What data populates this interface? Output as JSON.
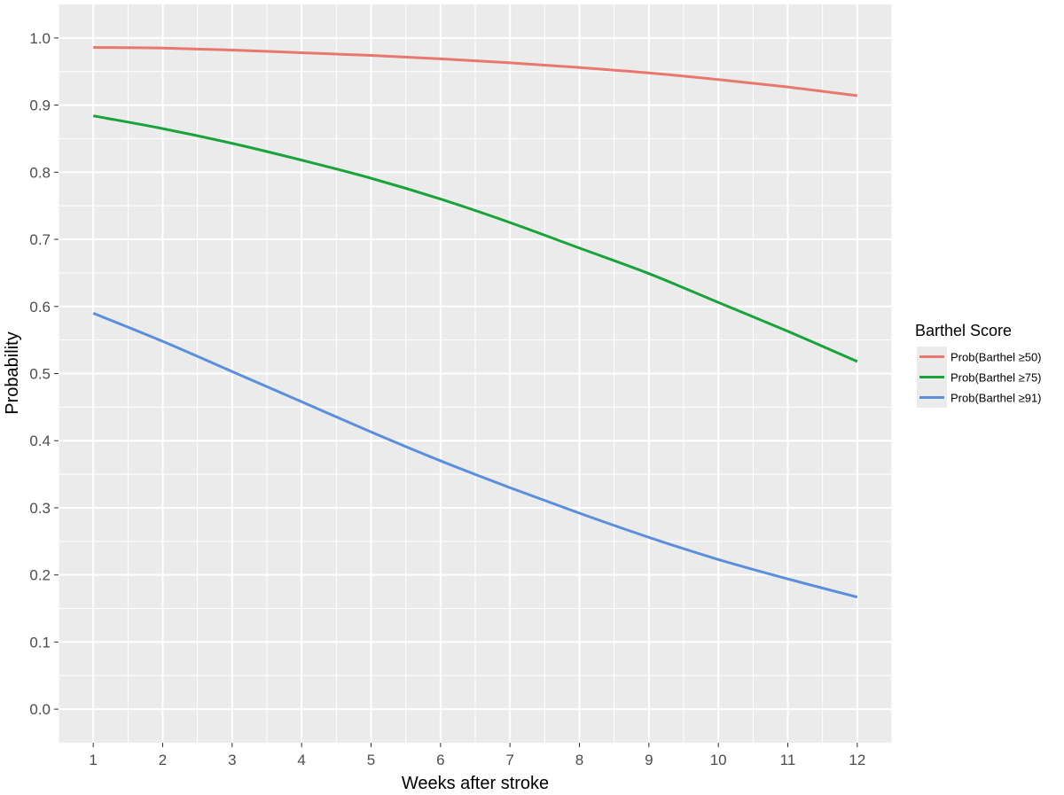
{
  "chart_data": {
    "type": "line",
    "title": "",
    "xlabel": "Weeks after stroke",
    "ylabel": "Probability",
    "x": [
      1,
      2,
      3,
      4,
      5,
      6,
      7,
      8,
      9,
      10,
      11,
      12
    ],
    "x_ticks": [
      "1",
      "2",
      "3",
      "4",
      "5",
      "6",
      "7",
      "8",
      "9",
      "10",
      "11",
      "12"
    ],
    "y_ticks": [
      "0.0",
      "0.1",
      "0.2",
      "0.3",
      "0.4",
      "0.5",
      "0.6",
      "0.7",
      "0.8",
      "0.9",
      "1.0"
    ],
    "xlim": [
      0.5,
      12.5
    ],
    "ylim": [
      -0.05,
      1.05
    ],
    "grid": true,
    "legend_title": "Barthel Score",
    "legend_position": "right",
    "series": [
      {
        "name": "Prob(Barthel ≥50)",
        "color": "#E8776E",
        "values": [
          0.986,
          0.985,
          0.982,
          0.978,
          0.974,
          0.969,
          0.963,
          0.956,
          0.948,
          0.938,
          0.927,
          0.914
        ]
      },
      {
        "name": "Prob(Barthel ≥75)",
        "color": "#1AA33A",
        "values": [
          0.884,
          0.865,
          0.843,
          0.818,
          0.791,
          0.76,
          0.725,
          0.687,
          0.649,
          0.606,
          0.563,
          0.518
        ]
      },
      {
        "name": "Prob(Barthel ≥91)",
        "color": "#5B8FDB",
        "values": [
          0.59,
          0.548,
          0.503,
          0.458,
          0.413,
          0.37,
          0.33,
          0.292,
          0.256,
          0.223,
          0.194,
          0.167
        ]
      }
    ]
  }
}
